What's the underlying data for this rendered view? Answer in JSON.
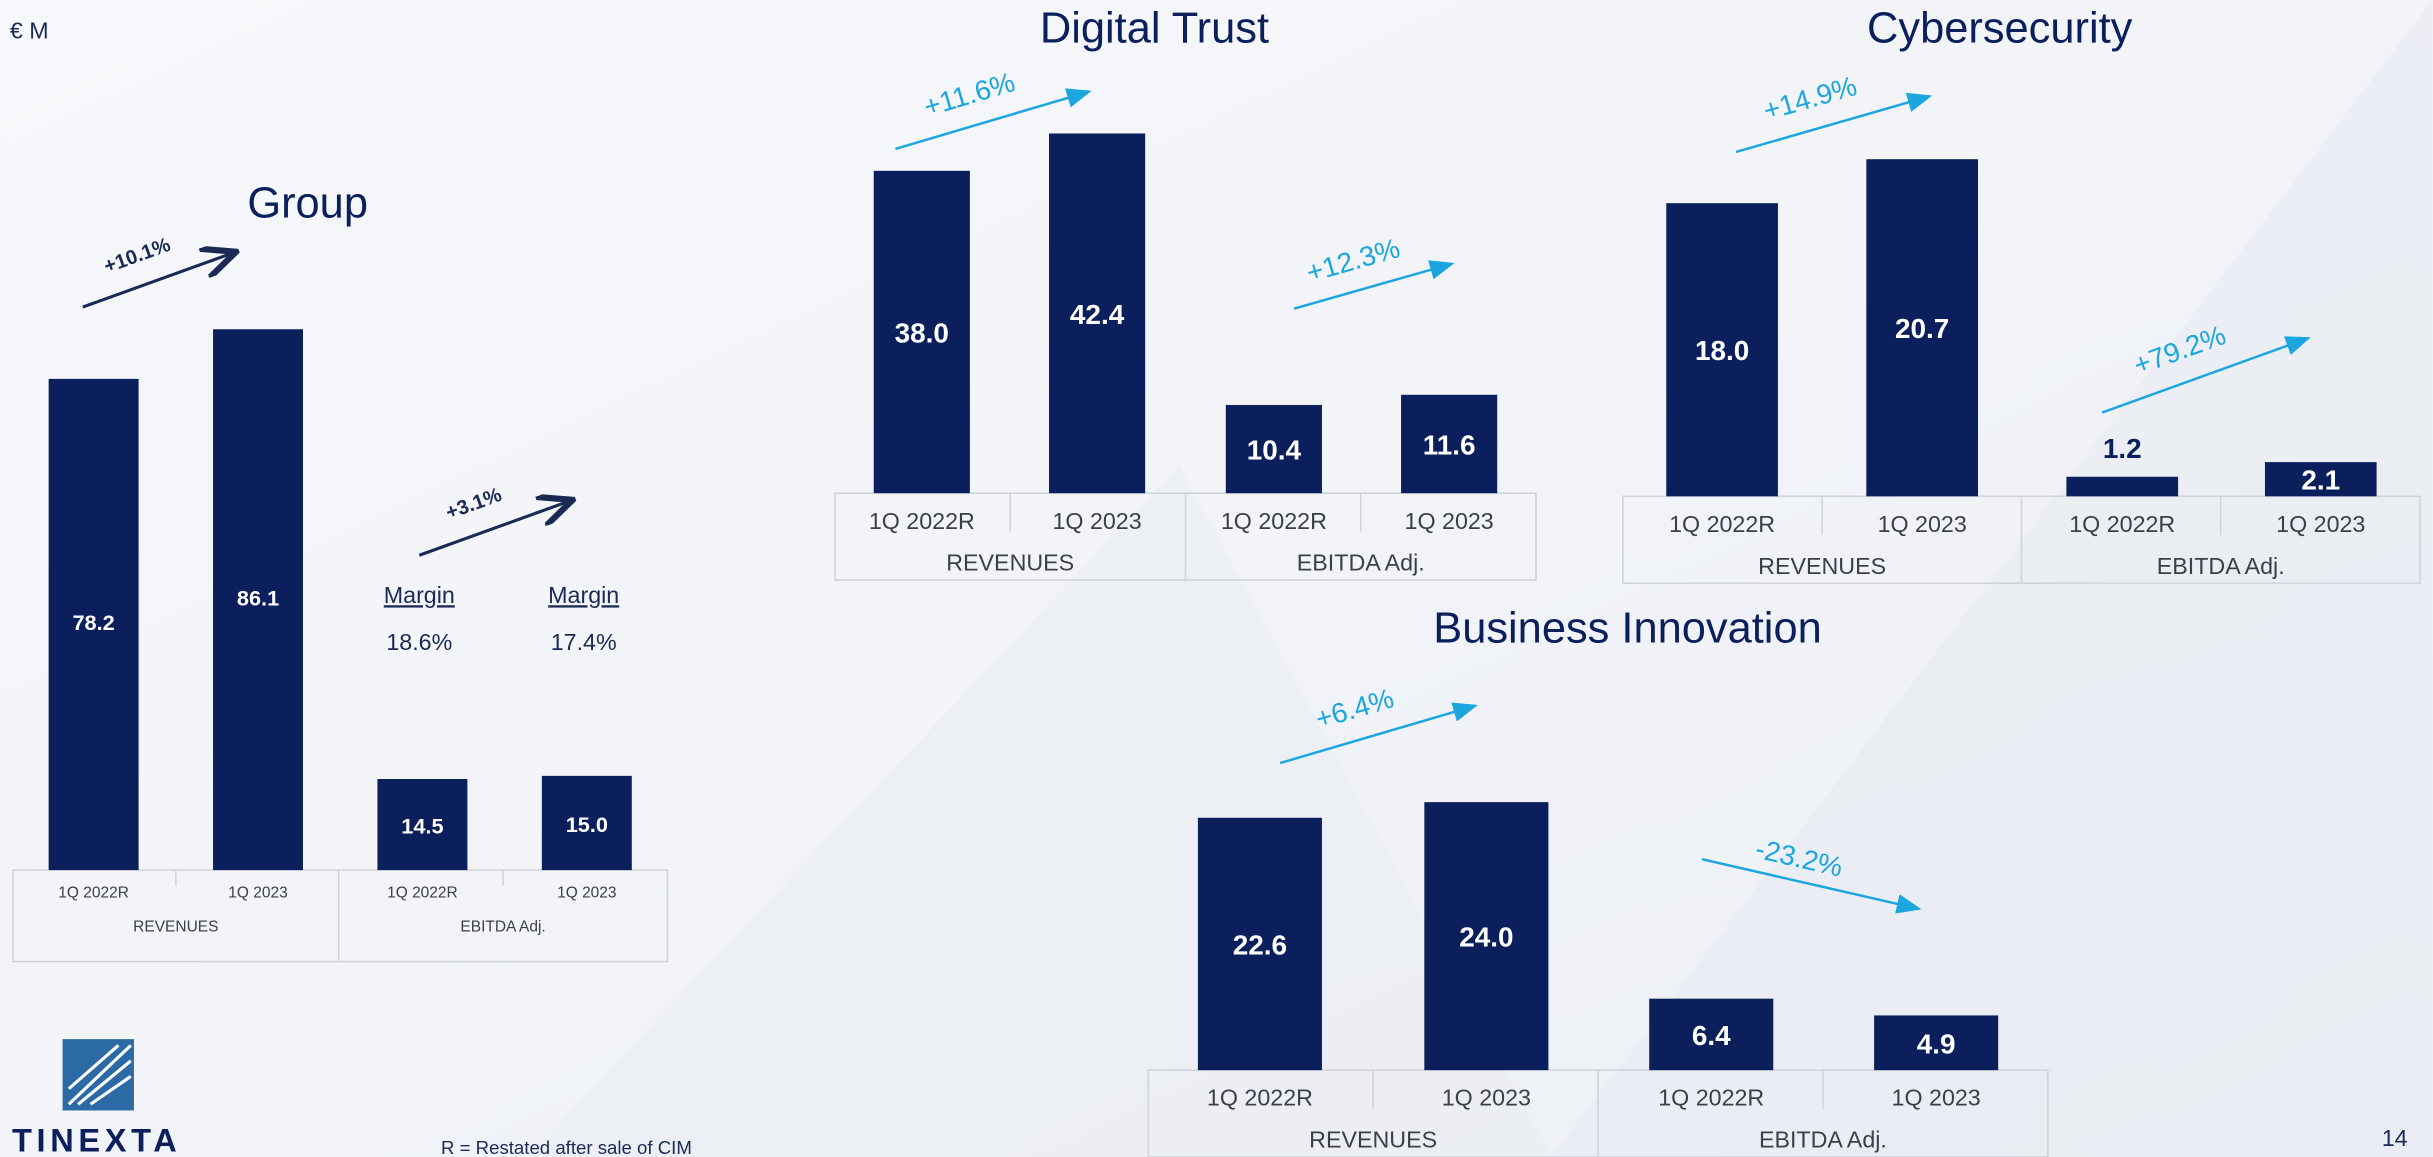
{
  "unit_label": "€ M",
  "footnote": "R = Restated after sale of CIM",
  "page_number": "14",
  "logo": "TINEXTA",
  "chart_data": [
    {
      "type": "bar",
      "title": "Group",
      "color": "#0b1f5c",
      "categories": [
        "1Q 2022R",
        "1Q 2023",
        "1Q 2022R",
        "1Q 2023"
      ],
      "groups": [
        "REVENUES",
        "EBITDA Adj."
      ],
      "values": [
        78.2,
        86.1,
        14.5,
        15.0
      ],
      "value_labels": [
        "78.2",
        "86.1",
        "14.5",
        "15.0"
      ],
      "annotations": [
        "+10.1%",
        "+3.1%"
      ],
      "margin_titles": [
        "Margin",
        "Margin"
      ],
      "margin_values": [
        "18.6%",
        "17.4%"
      ]
    },
    {
      "type": "bar",
      "title": "Digital Trust",
      "color": "#0b1f5c",
      "categories": [
        "1Q 2022R",
        "1Q 2023",
        "1Q 2022R",
        "1Q 2023"
      ],
      "groups": [
        "REVENUES",
        "EBITDA Adj."
      ],
      "values": [
        38.0,
        42.4,
        10.4,
        11.6
      ],
      "value_labels": [
        "38.0",
        "42.4",
        "10.4",
        "11.6"
      ],
      "annotations": [
        "+11.6%",
        "+12.3%"
      ]
    },
    {
      "type": "bar",
      "title": "Cybersecurity",
      "color": "#0b1f5c",
      "categories": [
        "1Q 2022R",
        "1Q 2023",
        "1Q 2022R",
        "1Q 2023"
      ],
      "groups": [
        "REVENUES",
        "EBITDA Adj."
      ],
      "values": [
        18.0,
        20.7,
        1.2,
        2.1
      ],
      "value_labels": [
        "18.0",
        "20.7",
        "1.2",
        "2.1"
      ],
      "annotations": [
        "+14.9%",
        "+79.2%"
      ]
    },
    {
      "type": "bar",
      "title": "Business Innovation",
      "color": "#0b1f5c",
      "categories": [
        "1Q 2022R",
        "1Q 2023",
        "1Q 2022R",
        "1Q 2023"
      ],
      "groups": [
        "REVENUES",
        "EBITDA Adj."
      ],
      "values": [
        22.6,
        24.0,
        6.4,
        4.9
      ],
      "value_labels": [
        "22.6",
        "24.0",
        "6.4",
        "4.9"
      ],
      "annotations": [
        "+6.4%",
        "-23.2%"
      ]
    }
  ]
}
